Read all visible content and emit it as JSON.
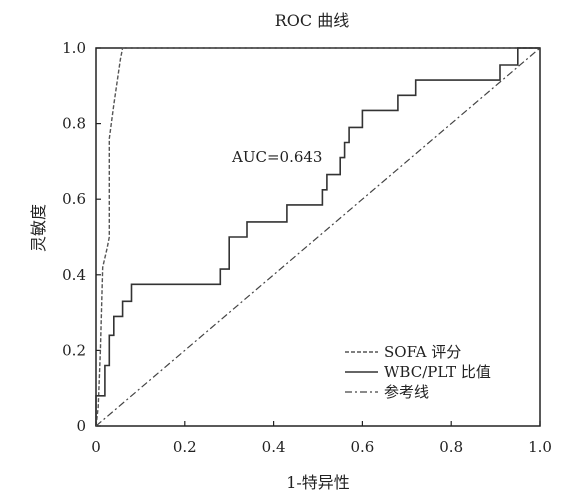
{
  "chart_data": {
    "type": "line",
    "title": "ROC 曲线",
    "xlabel": "1-特异性",
    "ylabel": "灵敏度",
    "xlim": [
      0,
      1
    ],
    "ylim": [
      0,
      1
    ],
    "x_ticks": [
      "0",
      "0.2",
      "0.4",
      "0.6",
      "0.8",
      "1.0"
    ],
    "y_ticks": [
      "0",
      "0.2",
      "0.4",
      "0.6",
      "0.8",
      "1.0"
    ],
    "grid": false,
    "legend_position": "bottom-right",
    "annotation": "AUC=0.643",
    "series": [
      {
        "name": "SOFA 评分",
        "style": "dashed",
        "color": "#555555",
        "points": [
          [
            0,
            0
          ],
          [
            0.005,
            0.05
          ],
          [
            0.01,
            0.2
          ],
          [
            0.015,
            0.42
          ],
          [
            0.025,
            0.47
          ],
          [
            0.03,
            0.5
          ],
          [
            0.03,
            0.76
          ],
          [
            0.04,
            0.85
          ],
          [
            0.055,
            0.97
          ],
          [
            0.06,
            1.0
          ],
          [
            1.0,
            1.0
          ]
        ]
      },
      {
        "name": "WBC/PLT 比值",
        "style": "solid",
        "color": "#333333",
        "points": [
          [
            0,
            0
          ],
          [
            0,
            0.08
          ],
          [
            0.02,
            0.08
          ],
          [
            0.02,
            0.16
          ],
          [
            0.03,
            0.16
          ],
          [
            0.03,
            0.24
          ],
          [
            0.04,
            0.24
          ],
          [
            0.04,
            0.29
          ],
          [
            0.06,
            0.29
          ],
          [
            0.06,
            0.33
          ],
          [
            0.08,
            0.33
          ],
          [
            0.08,
            0.375
          ],
          [
            0.28,
            0.375
          ],
          [
            0.28,
            0.415
          ],
          [
            0.3,
            0.415
          ],
          [
            0.3,
            0.5
          ],
          [
            0.34,
            0.5
          ],
          [
            0.34,
            0.54
          ],
          [
            0.43,
            0.54
          ],
          [
            0.43,
            0.585
          ],
          [
            0.51,
            0.585
          ],
          [
            0.51,
            0.625
          ],
          [
            0.52,
            0.625
          ],
          [
            0.52,
            0.665
          ],
          [
            0.55,
            0.665
          ],
          [
            0.55,
            0.71
          ],
          [
            0.56,
            0.71
          ],
          [
            0.56,
            0.75
          ],
          [
            0.57,
            0.75
          ],
          [
            0.57,
            0.79
          ],
          [
            0.6,
            0.79
          ],
          [
            0.6,
            0.835
          ],
          [
            0.68,
            0.835
          ],
          [
            0.68,
            0.875
          ],
          [
            0.72,
            0.875
          ],
          [
            0.72,
            0.915
          ],
          [
            0.91,
            0.915
          ],
          [
            0.91,
            0.955
          ],
          [
            0.95,
            0.955
          ],
          [
            0.95,
            1.0
          ],
          [
            1.0,
            1.0
          ]
        ]
      },
      {
        "name": "参考线",
        "style": "dashdot",
        "color": "#444444",
        "points": [
          [
            0,
            0
          ],
          [
            1,
            1
          ]
        ]
      }
    ]
  }
}
